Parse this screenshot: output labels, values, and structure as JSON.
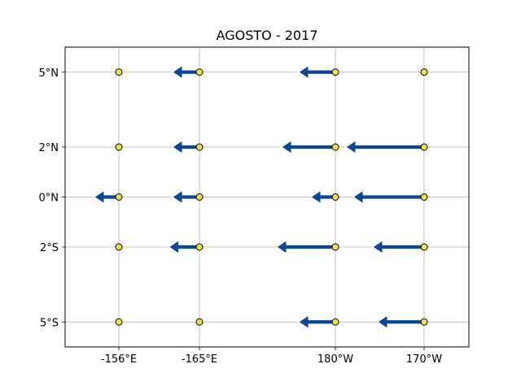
{
  "chart_data": {
    "type": "scatter",
    "subtype": "vector-field",
    "title": "AGOSTO - 2017",
    "xlabel": "",
    "ylabel": "",
    "grid": true,
    "x_ticks": [
      {
        "lon": -156,
        "label": "-156°E"
      },
      {
        "lon": -165,
        "label": "-165°E"
      },
      {
        "lon": 180,
        "label": "180°W"
      },
      {
        "lon": 170,
        "label": "170°W"
      }
    ],
    "y_ticks": [
      {
        "lat": 5,
        "label": "5°N"
      },
      {
        "lat": 2,
        "label": "2°N"
      },
      {
        "lat": 0,
        "label": "0°N"
      },
      {
        "lat": -2,
        "label": "2°S"
      },
      {
        "lat": -5,
        "label": "5°S"
      }
    ],
    "ylim": [
      -6,
      6
    ],
    "stations": [
      {
        "lon": -156,
        "lat": 5,
        "u": 0
      },
      {
        "lon": -165,
        "lat": 5,
        "u": -0.22
      },
      {
        "lon": 180,
        "lat": 5,
        "u": -0.3
      },
      {
        "lon": 170,
        "lat": 5,
        "u": 0
      },
      {
        "lon": -156,
        "lat": 2,
        "u": 0
      },
      {
        "lon": -165,
        "lat": 2,
        "u": -0.22
      },
      {
        "lon": 180,
        "lat": 2,
        "u": -0.44
      },
      {
        "lon": 170,
        "lat": 2,
        "u": -0.64
      },
      {
        "lon": -156,
        "lat": 0,
        "u": -0.2
      },
      {
        "lon": -165,
        "lat": 0,
        "u": -0.22
      },
      {
        "lon": 180,
        "lat": 0,
        "u": -0.2
      },
      {
        "lon": 170,
        "lat": 0,
        "u": -0.58
      },
      {
        "lon": -156,
        "lat": -2,
        "u": 0
      },
      {
        "lon": -165,
        "lat": -2,
        "u": -0.25
      },
      {
        "lon": 180,
        "lat": -2,
        "u": -0.48
      },
      {
        "lon": 170,
        "lat": -2,
        "u": -0.42
      },
      {
        "lon": -156,
        "lat": -5,
        "u": 0
      },
      {
        "lon": -165,
        "lat": -5,
        "u": 0
      },
      {
        "lon": 180,
        "lat": -5,
        "u": -0.3
      },
      {
        "lon": 170,
        "lat": -5,
        "u": -0.38
      }
    ],
    "colors": {
      "arrow": "#0b4698",
      "arrow_edge": "#ffffff",
      "marker": "#f0e040",
      "marker_edge": "#000000",
      "grid": "#b0b0b0",
      "axes": "#000000"
    }
  }
}
